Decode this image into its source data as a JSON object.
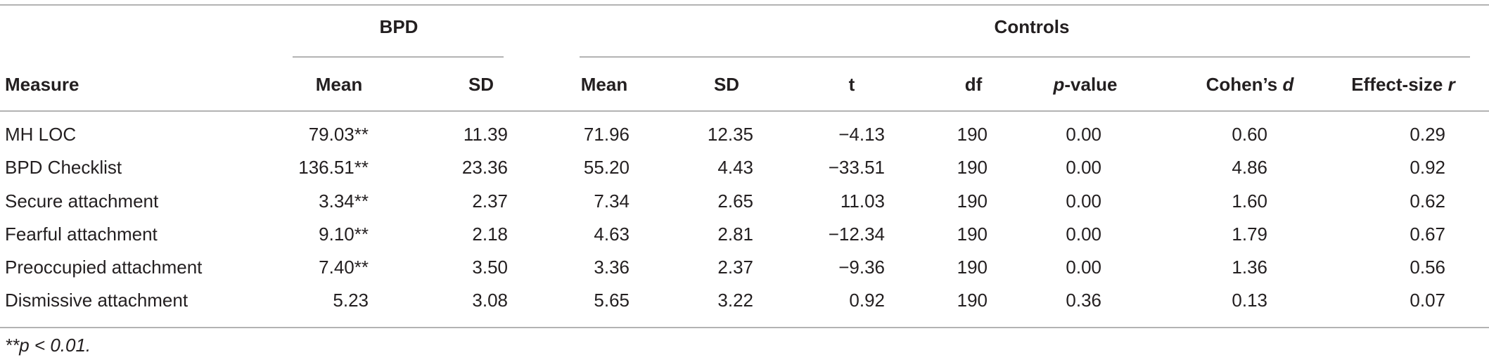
{
  "table": {
    "groups": [
      "BPD",
      "Controls"
    ],
    "columns": [
      [
        {
          "text": "Measure",
          "italic": false
        }
      ],
      [
        {
          "text": "Mean",
          "italic": false
        }
      ],
      [
        {
          "text": "SD",
          "italic": false
        }
      ],
      [
        {
          "text": "Mean",
          "italic": false
        }
      ],
      [
        {
          "text": "SD",
          "italic": false
        }
      ],
      [
        {
          "text": "t",
          "italic": false
        }
      ],
      [
        {
          "text": "df",
          "italic": false
        }
      ],
      [
        {
          "text": "p",
          "italic": true
        },
        {
          "text": "-value",
          "italic": false
        }
      ],
      [
        {
          "text": "Cohen’s ",
          "italic": false
        },
        {
          "text": "d",
          "italic": true
        }
      ],
      [
        {
          "text": "Effect-size ",
          "italic": false
        },
        {
          "text": "r",
          "italic": true
        }
      ]
    ],
    "rows": [
      [
        "MH LOC",
        "79.03**",
        "11.39",
        "71.96",
        "12.35",
        "−4.13",
        "190",
        "0.00",
        "0.60",
        "0.29"
      ],
      [
        "BPD Checklist",
        "136.51**",
        "23.36",
        "55.20",
        "4.43",
        "−33.51",
        "190",
        "0.00",
        "4.86",
        "0.92"
      ],
      [
        "Secure attachment",
        "3.34**",
        "2.37",
        "7.34",
        "2.65",
        "11.03",
        "190",
        "0.00",
        "1.60",
        "0.62"
      ],
      [
        "Fearful attachment",
        "9.10**",
        "2.18",
        "4.63",
        "2.81",
        "−12.34",
        "190",
        "0.00",
        "1.79",
        "0.67"
      ],
      [
        "Preoccupied attachment",
        "7.40**",
        "3.50",
        "3.36",
        "2.37",
        "−9.36",
        "190",
        "0.00",
        "1.36",
        "0.56"
      ],
      [
        "Dismissive attachment",
        "5.23",
        "3.08",
        "5.65",
        "3.22",
        "0.92",
        "190",
        "0.36",
        "0.13",
        "0.07"
      ]
    ],
    "footnote": "**p < 0.01."
  }
}
